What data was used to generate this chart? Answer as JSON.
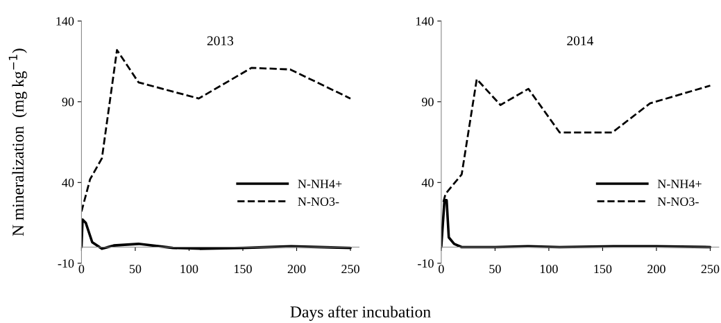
{
  "chart_data": [
    {
      "type": "line",
      "title": "2013",
      "xlabel": "Days after incubation",
      "ylabel": "N mineralization  (mg kg$^{−1}$)",
      "xlim": [
        0,
        258
      ],
      "xticks": [
        0,
        50,
        100,
        150,
        200,
        250
      ],
      "ylim": [
        -10,
        140
      ],
      "yticks": [
        -10,
        40,
        90,
        140
      ],
      "legend": "bottom right",
      "grid": false,
      "tick_labels": "xy",
      "series": [
        {
          "name": "N-NH4+",
          "color": "#000000",
          "line_style": "solid",
          "x": [
            0,
            1,
            4,
            10,
            19,
            30,
            53,
            85,
            110,
            150,
            195,
            250
          ],
          "values": [
            0,
            17,
            15,
            3,
            -1,
            1,
            2,
            -0.5,
            -1,
            -0.5,
            0.5,
            -0.5
          ]
        },
        {
          "name": "N-NO3-",
          "color": "#000000",
          "line_style": "dashed",
          "x": [
            0,
            8,
            19,
            33,
            53,
            109,
            158,
            194,
            250
          ],
          "values": [
            22,
            42,
            55,
            122,
            102,
            92,
            111,
            110,
            92
          ]
        }
      ]
    },
    {
      "type": "line",
      "title": "2014",
      "xlim": [
        0,
        258
      ],
      "xticks": [
        0,
        50,
        100,
        150,
        200,
        250
      ],
      "ylim": [
        -10,
        140
      ],
      "yticks": [
        -10,
        40,
        90,
        140
      ],
      "legend": "bottom right",
      "grid": false,
      "series": [
        {
          "name": "N-NH4+",
          "color": "#000000",
          "line_style": "solid",
          "x": [
            0,
            3,
            5,
            7,
            12,
            19,
            50,
            80,
            110,
            160,
            200,
            250
          ],
          "values": [
            0,
            29,
            29,
            6,
            2,
            0,
            0,
            0.5,
            0,
            0.5,
            0.5,
            0
          ]
        },
        {
          "name": "N-NO3-",
          "color": "#000000",
          "line_style": "dashed",
          "x": [
            2,
            4,
            19,
            33,
            55,
            81,
            110,
            159,
            194,
            250
          ],
          "values": [
            28,
            33,
            45,
            104,
            88,
            98,
            71,
            71,
            89,
            100
          ]
        }
      ]
    }
  ]
}
